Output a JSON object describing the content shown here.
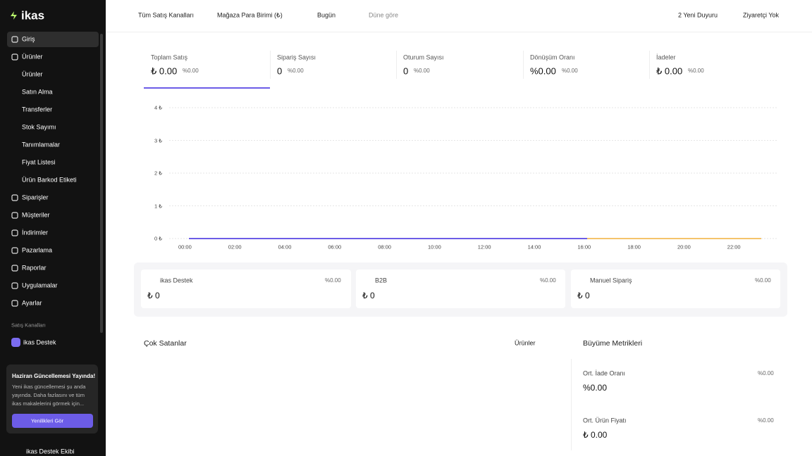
{
  "sidebar": {
    "brand": "ikas",
    "nav": [
      {
        "label": "Giriş"
      },
      {
        "label": "Ürünler",
        "children": [
          "Ürünler",
          "Satın Alma",
          "Transferler",
          "Stok Sayımı",
          "Tanımlamalar",
          "Fiyat Listesi",
          "Ürün Barkod Etiketi"
        ]
      },
      {
        "label": "Siparişler"
      },
      {
        "label": "Müşteriler"
      },
      {
        "label": "İndirimler"
      },
      {
        "label": "Pazarlama"
      },
      {
        "label": "Raporlar"
      },
      {
        "label": "Uygulamalar"
      },
      {
        "label": "Ayarlar"
      }
    ],
    "section_title": "Satış Kanalları",
    "channel": "ikas Destek",
    "update": {
      "title": "Haziran Güncellemesi Yayında!",
      "text": "Yeni ikas güncellemesi şu anda yayında. Daha fazlasını ve tüm ikas makalelerini görmek için...",
      "button": "Yenilikleri Gör"
    },
    "user": "ikas Destek Ekibi"
  },
  "topbar": {
    "filters": [
      "Tüm Satış Kanalları",
      "Mağaza Para Birimi (₺)",
      "Bugün"
    ],
    "compare": "Düne göre",
    "announcements": "2 Yeni Duyuru",
    "visitors": "Ziyaretçi Yok"
  },
  "metrics": [
    {
      "label": "Toplam Satış",
      "value": "₺ 0.00",
      "change": "%0.00"
    },
    {
      "label": "Sipariş Sayısı",
      "value": "0",
      "change": "%0.00"
    },
    {
      "label": "Oturum Sayısı",
      "value": "0",
      "change": "%0.00"
    },
    {
      "label": "Dönüşüm Oranı",
      "value": "%0.00",
      "change": "%0.00"
    },
    {
      "label": "İadeler",
      "value": "₺ 0.00",
      "change": "%0.00"
    }
  ],
  "chart": {
    "y_labels": [
      "4 ₺",
      "3 ₺",
      "2 ₺",
      "1 ₺",
      "0 ₺"
    ],
    "x_labels": [
      "00:00",
      "02:00",
      "04:00",
      "06:00",
      "08:00",
      "10:00",
      "12:00",
      "14:00",
      "16:00",
      "18:00",
      "20:00",
      "22:00"
    ]
  },
  "channels": [
    {
      "name": "ikas Destek",
      "change": "%0.00",
      "value": "₺ 0"
    },
    {
      "name": "B2B",
      "change": "%0.00",
      "value": "₺ 0"
    },
    {
      "name": "Manuel Sipariş",
      "change": "%0.00",
      "value": "₺ 0"
    }
  ],
  "best_sellers": {
    "title": "Çok Satanlar",
    "filter": "Ürünler"
  },
  "growth": {
    "title": "Büyüme Metrikleri",
    "items": [
      {
        "label": "Ort. İade Oranı",
        "change": "%0.00",
        "value": "%0.00"
      },
      {
        "label": "Ort. Ürün Fiyatı",
        "change": "%0.00",
        "value": "₺ 0.00"
      }
    ]
  }
}
